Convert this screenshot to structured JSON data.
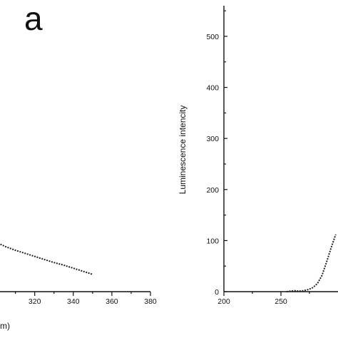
{
  "chart_data": [
    {
      "type": "line",
      "panel_letter": "a",
      "xlabel": "m)",
      "ylabel": "",
      "xlim": [
        302,
        380
      ],
      "ylim": [
        0,
        560
      ],
      "x_ticks": [
        320,
        340,
        360,
        380
      ],
      "series": [
        {
          "x": [
            301,
            305,
            310,
            315,
            320,
            325,
            330,
            335,
            340,
            345,
            350
          ],
          "y": [
            95,
            88,
            81,
            75,
            69,
            63,
            57,
            52,
            46,
            40,
            34
          ]
        }
      ]
    },
    {
      "type": "line",
      "xlabel": "",
      "ylabel": "Luminescence intencity",
      "xlim": [
        200,
        300
      ],
      "ylim": [
        0,
        560
      ],
      "x_ticks": [
        200,
        250
      ],
      "y_ticks": [
        0,
        100,
        200,
        300,
        400,
        500
      ],
      "series": [
        {
          "x": [
            255,
            258,
            262,
            266,
            270,
            274,
            278,
            282,
            286,
            290,
            294,
            298
          ],
          "y": [
            0,
            1,
            2,
            1,
            2,
            4,
            8,
            16,
            32,
            58,
            86,
            112
          ]
        }
      ]
    }
  ]
}
